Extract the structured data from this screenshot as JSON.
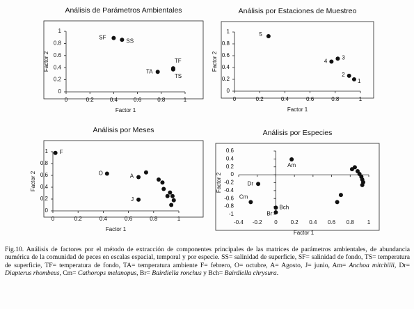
{
  "chart_data": [
    {
      "type": "scatter",
      "title": "Análisis de Parámetros Ambientales",
      "x_label": "Factor 1",
      "y_label": "Factor 2",
      "x": [
        0.4,
        0.47,
        0.77,
        0.9,
        0.9
      ],
      "values": [
        0.89,
        0.86,
        0.33,
        0.39,
        0.37
      ],
      "labels": [
        "SF",
        "SS",
        "TA",
        "TF",
        "TS"
      ],
      "color": "#111111",
      "xlim": [
        0,
        1
      ],
      "ylim": [
        0,
        1
      ],
      "xticks": [
        0,
        0.2,
        0.4,
        0.6,
        0.8,
        1
      ],
      "yticks": [
        0,
        0.2,
        0.4,
        0.6,
        0.8,
        1
      ]
    },
    {
      "type": "scatter",
      "title": "Análisis por Estaciones de Muestreo",
      "x_label": "Factor 1",
      "y_label": "Factor 2",
      "x": [
        0.27,
        0.77,
        0.82,
        0.91,
        0.95
      ],
      "values": [
        0.93,
        0.5,
        0.55,
        0.26,
        0.2
      ],
      "labels": [
        "5",
        "4",
        "3",
        "2",
        "1"
      ],
      "color": "#111111",
      "xlim": [
        0,
        1
      ],
      "ylim": [
        0,
        1
      ],
      "xticks": [
        0,
        0.2,
        0.4,
        0.6,
        0.8,
        1
      ],
      "yticks": [
        0,
        0.2,
        0.4,
        0.6,
        0.8,
        1
      ]
    },
    {
      "type": "scatter",
      "title": "Análisis por Meses",
      "x_label": "Factor 1",
      "y_label": "Factor 2",
      "x": [
        0.02,
        0.43,
        0.68,
        0.68,
        0.74,
        0.84,
        0.87,
        0.88,
        0.91,
        0.93,
        0.95,
        0.96,
        0.94
      ],
      "values": [
        0.98,
        0.63,
        0.57,
        0.19,
        0.65,
        0.53,
        0.48,
        0.37,
        0.25,
        0.31,
        0.25,
        0.18,
        0.1
      ],
      "labels": [
        "F",
        "O",
        "A",
        "J",
        null,
        null,
        null,
        null,
        null,
        null,
        null,
        null,
        null
      ],
      "color": "#111111",
      "xlim": [
        0,
        1
      ],
      "ylim": [
        0,
        1
      ],
      "xticks": [
        0,
        0.2,
        0.4,
        0.6,
        0.8,
        1
      ],
      "yticks": [
        0,
        0.2,
        0.4,
        0.6,
        0.8,
        1
      ]
    },
    {
      "type": "scatter",
      "title": "Análisis por Especies",
      "x_label": "Factor 1",
      "y_label": "Factor 2",
      "x": [
        0.17,
        -0.19,
        -0.27,
        0,
        0,
        0.82,
        0.85,
        0.88,
        0.9,
        0.92,
        0.93,
        0.94,
        0.93,
        0.7,
        0.66
      ],
      "values": [
        0.39,
        -0.23,
        -0.69,
        -0.95,
        -0.83,
        0.14,
        0.19,
        0.09,
        0.02,
        -0.05,
        -0.12,
        -0.19,
        -0.26,
        -0.51,
        -0.69
      ],
      "labels": [
        "Am",
        "Dr",
        "Cm",
        "Br",
        "Bch",
        null,
        null,
        null,
        null,
        null,
        null,
        null,
        null,
        null,
        null
      ],
      "color": "#111111",
      "xlim": [
        -0.4,
        1
      ],
      "ylim": [
        -1,
        0.6
      ],
      "xticks": [
        -0.4,
        -0.2,
        0,
        0.2,
        0.4,
        0.6,
        0.8,
        1
      ],
      "yticks": [
        -1,
        -0.8,
        -0.6,
        -0.4,
        -0.2,
        0,
        0.2,
        0.4,
        0.6
      ]
    }
  ],
  "caption": [
    {
      "text": "Fig.10. Análisis de factores por el método de extracción de componentes principales de las matrices de parámetros ambientales, de abundancia numérica de la comunidad de peces en escalas espacial, temporal y por especie. SS= salinidad de superficie, SF= salinidad de fondo, TS= temperatura de superficie, TF= temperatura de fondo, TA= temperatura ambiente F= febrero, O= octubre, A= Agosto, J= junio, Am= "
    },
    {
      "text": "Anchoa mitchilli",
      "italic": true
    },
    {
      "text": ", Dr= "
    },
    {
      "text": "Diapterus rhombeus",
      "italic": true
    },
    {
      "text": ", Cm= "
    },
    {
      "text": "Cathorops melanopus",
      "italic": true
    },
    {
      "text": ", Br= "
    },
    {
      "text": "Bairdiella ronchus",
      "italic": true
    },
    {
      "text": " y Bch= "
    },
    {
      "text": "Bairdiella chrysura",
      "italic": true
    },
    {
      "text": "."
    }
  ]
}
